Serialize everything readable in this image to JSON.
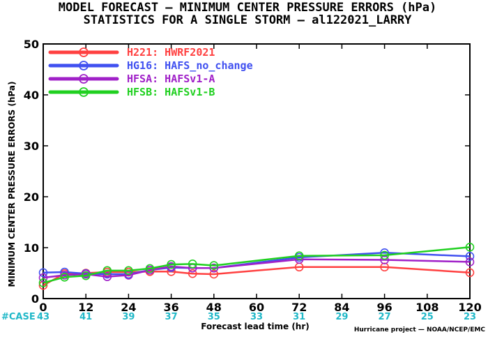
{
  "chart_data": {
    "type": "line",
    "title": "MODEL FORECAST — MINIMUM CENTER PRESSURE ERRORS (hPa)",
    "subtitle": "STATISTICS FOR A SINGLE STORM — al122021_LARRY",
    "xlabel": "Forecast lead time (hr)",
    "ylabel": "MINIMUM CENTER PRESSURE ERRORS (hPa)",
    "xlim": [
      0,
      120
    ],
    "ylim": [
      0,
      50
    ],
    "xticks": [
      0,
      12,
      24,
      36,
      48,
      60,
      72,
      84,
      96,
      108,
      120
    ],
    "yticks": [
      0,
      10,
      20,
      30,
      40,
      50
    ],
    "grid": false,
    "legend_position": "top-left",
    "case_label": "#CASE",
    "cases": {
      "x": [
        0,
        12,
        24,
        36,
        48,
        60,
        72,
        84,
        96,
        108,
        120
      ],
      "counts": [
        43,
        41,
        39,
        37,
        35,
        33,
        31,
        29,
        27,
        25,
        23
      ]
    },
    "credit": "Hurricane project — NOAA/NCEP/EMC",
    "series": [
      {
        "name": "H221: HWRF2021",
        "color": "#ff4040",
        "x": [
          0,
          6,
          12,
          18,
          24,
          30,
          36,
          42,
          48,
          72,
          96,
          120
        ],
        "y": [
          2.6,
          4.9,
          5.0,
          5.2,
          5.2,
          5.3,
          5.3,
          4.9,
          4.8,
          6.2,
          6.2,
          5.1
        ]
      },
      {
        "name": "HG16: HAFS_no_change",
        "color": "#4050f0",
        "x": [
          0,
          6,
          12,
          18,
          24,
          30,
          36,
          42,
          48,
          72,
          96,
          120
        ],
        "y": [
          5.1,
          5.2,
          4.9,
          4.8,
          4.8,
          5.6,
          6.1,
          6.0,
          6.0,
          8.1,
          9.0,
          8.3
        ]
      },
      {
        "name": "HFSA: HAFSv1-A",
        "color": "#a020c8",
        "x": [
          0,
          6,
          12,
          18,
          24,
          30,
          36,
          42,
          48,
          72,
          96,
          120
        ],
        "y": [
          4.1,
          4.6,
          4.8,
          4.3,
          4.6,
          5.6,
          6.3,
          6.0,
          6.0,
          7.7,
          7.6,
          7.2
        ]
      },
      {
        "name": "HFSB: HAFSv1-B",
        "color": "#20d020",
        "x": [
          0,
          6,
          12,
          18,
          24,
          30,
          36,
          42,
          48,
          72,
          96,
          120
        ],
        "y": [
          3.1,
          4.2,
          4.5,
          5.5,
          5.5,
          5.9,
          6.7,
          6.8,
          6.5,
          8.4,
          8.5,
          10.1
        ]
      }
    ]
  }
}
